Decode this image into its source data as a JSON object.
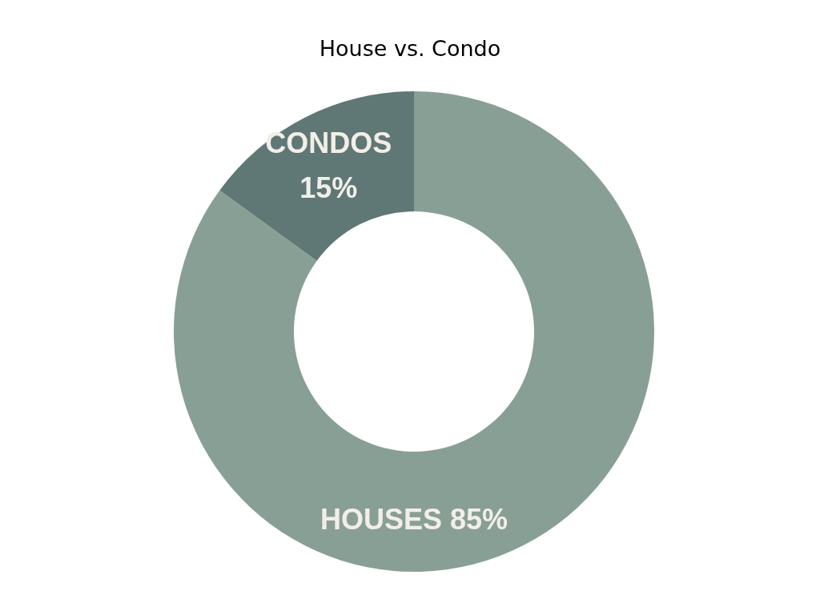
{
  "chart_data": {
    "type": "donut",
    "title": "House vs. Condo",
    "categories": [
      "HOUSES",
      "CONDOS"
    ],
    "values": [
      85,
      15
    ],
    "value_labels": [
      "85%",
      "15%"
    ],
    "colors": [
      "#889f96",
      "#5f7775"
    ],
    "legend": false
  }
}
